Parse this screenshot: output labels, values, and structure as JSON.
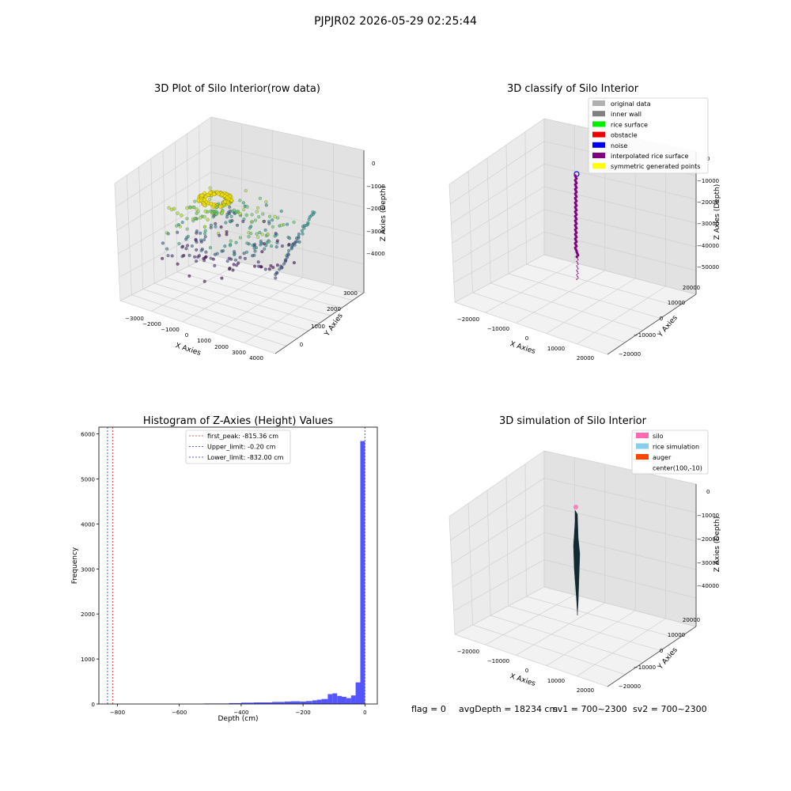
{
  "suptitle": "PJPJR02 2026-05-29 02:25:44",
  "colors": {
    "hist_bar": "#5555ff",
    "first_peak": "#e23030",
    "limit": "#2a2acc",
    "pane_light": "#f2f2f2",
    "pane_mid": "#ebebeb",
    "pane_dark": "#e2e2e2",
    "grid": "#d0d0d0"
  },
  "chart_data": [
    {
      "type": "scatter",
      "projection": "3d",
      "title": "3D Plot of Silo Interior(row data)",
      "xlabel": "X Axies",
      "ylabel": "Y Axies",
      "zlabel": "Z Axies (Depth)",
      "xticks": [
        "−3000",
        "−2000",
        "−1000",
        "0",
        "1000",
        "2000",
        "3000",
        "4000"
      ],
      "yticks": [
        "0",
        "1000",
        "2000",
        "3000"
      ],
      "zticks": [
        "0",
        "−1000",
        "−2000",
        "−3000",
        "−4000"
      ],
      "xlim": [
        -3500,
        4500
      ],
      "ylim": [
        -500,
        3500
      ],
      "zlim": [
        -4800,
        200
      ],
      "colormap": "viridis",
      "highlight_color": "#f0e000"
    },
    {
      "type": "scatter",
      "projection": "3d",
      "title": "3D classify of Silo Interior",
      "xlabel": "X Axies",
      "ylabel": "Y Axies",
      "zlabel": "Z Axies (Depth)",
      "xticks": [
        "−20000",
        "−10000",
        "0",
        "10000",
        "20000"
      ],
      "yticks": [
        "−20000",
        "−10000",
        "0",
        "10000",
        "20000"
      ],
      "zticks": [
        "0",
        "−10000",
        "−20000",
        "−30000",
        "−40000",
        "−50000"
      ],
      "legend_position": "upper right",
      "legend": [
        {
          "label": "original data",
          "color": "#b0b0b0"
        },
        {
          "label": "inner wall",
          "color": "#808080"
        },
        {
          "label": "rice surface",
          "color": "#00ee00"
        },
        {
          "label": "obstacle",
          "color": "#ee0000"
        },
        {
          "label": "noise",
          "color": "#0000ee"
        },
        {
          "label": "interpolated rice surface",
          "color": "#800080"
        },
        {
          "label": "symmetric generated points",
          "color": "#ffff00"
        }
      ]
    },
    {
      "type": "bar",
      "title": "Histogram of Z-Axies (Height) Values",
      "xlabel": "Depth (cm)",
      "ylabel": "Frequency",
      "xlim": [
        -860,
        40
      ],
      "ylim": [
        0,
        6150
      ],
      "xticks": [
        -800,
        -600,
        -400,
        -200,
        0
      ],
      "yticks": [
        0,
        1000,
        2000,
        3000,
        4000,
        5000,
        6000
      ],
      "bins": [
        {
          "x0": -520,
          "x1": -440,
          "count": 10
        },
        {
          "x0": -440,
          "x1": -400,
          "count": 20
        },
        {
          "x0": -400,
          "x1": -360,
          "count": 30
        },
        {
          "x0": -360,
          "x1": -300,
          "count": 35
        },
        {
          "x0": -300,
          "x1": -260,
          "count": 45
        },
        {
          "x0": -260,
          "x1": -240,
          "count": 55
        },
        {
          "x0": -240,
          "x1": -210,
          "count": 60
        },
        {
          "x0": -210,
          "x1": -190,
          "count": 55
        },
        {
          "x0": -190,
          "x1": -170,
          "count": 65
        },
        {
          "x0": -170,
          "x1": -155,
          "count": 80
        },
        {
          "x0": -155,
          "x1": -140,
          "count": 95
        },
        {
          "x0": -140,
          "x1": -120,
          "count": 110
        },
        {
          "x0": -120,
          "x1": -105,
          "count": 220
        },
        {
          "x0": -105,
          "x1": -90,
          "count": 235
        },
        {
          "x0": -90,
          "x1": -75,
          "count": 180
        },
        {
          "x0": -75,
          "x1": -60,
          "count": 160
        },
        {
          "x0": -60,
          "x1": -45,
          "count": 130
        },
        {
          "x0": -45,
          "x1": -30,
          "count": 190
        },
        {
          "x0": -30,
          "x1": -15,
          "count": 480
        },
        {
          "x0": -15,
          "x1": 0,
          "count": 5840
        }
      ],
      "vlines": [
        {
          "label": "first_peak: -815.36 cm",
          "x": -815.36,
          "color": "#e23030"
        },
        {
          "label": "Upper_limit: -0.20 cm",
          "x": -0.2,
          "color": "#2a2acc"
        },
        {
          "label": "Lower_limit: -832.00 cm",
          "x": -832.0,
          "color": "#2a2acc"
        }
      ]
    },
    {
      "type": "surface",
      "projection": "3d",
      "title": "3D simulation of Silo Interior",
      "xlabel": "X Axies",
      "ylabel": "Y Axies",
      "zlabel": "Z Axies (Depth)",
      "xticks": [
        "−20000",
        "−10000",
        "0",
        "10000",
        "20000"
      ],
      "yticks": [
        "−20000",
        "−10000",
        "0",
        "10000",
        "20000"
      ],
      "zticks": [
        "0",
        "−10000",
        "−20000",
        "−30000",
        "−40000"
      ],
      "legend_position": "upper right",
      "legend": [
        {
          "label": "silo",
          "color": "#ff69b4"
        },
        {
          "label": "rice simulation",
          "color": "#87ceeb"
        },
        {
          "label": "auger",
          "color": "#ff4500"
        },
        {
          "label": "center(100,-10)",
          "color": ""
        }
      ]
    }
  ],
  "footer": {
    "flag": "flag = 0",
    "avg_depth": "avgDepth = 18234 cm",
    "sv1": "sv1 = 700~2300",
    "sv2": "sv2 = 700~2300"
  }
}
